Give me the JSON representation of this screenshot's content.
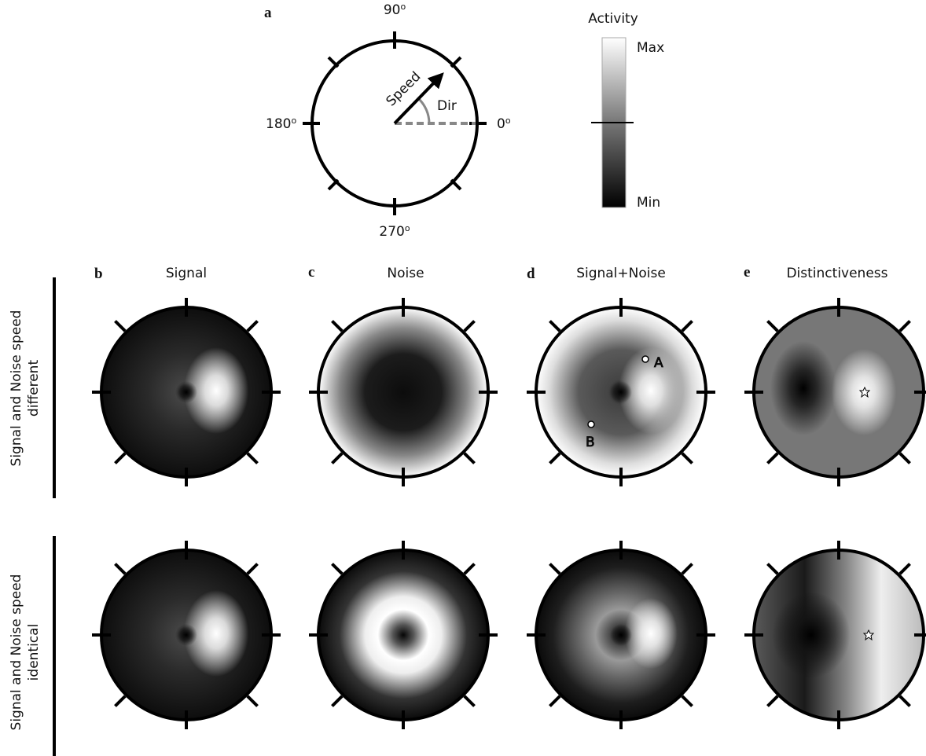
{
  "panel_a": {
    "label": "a",
    "angles": [
      {
        "num": "90",
        "sup": "o"
      },
      {
        "num": "180",
        "sup": "o"
      },
      {
        "num": "0",
        "sup": "o"
      },
      {
        "num": "270",
        "sup": "o"
      }
    ],
    "speed": "Speed",
    "dir": "Dir"
  },
  "colorbar": {
    "title": "Activity",
    "max": "Max",
    "min": "Min"
  },
  "columns": [
    {
      "label": "b",
      "title": "Signal"
    },
    {
      "label": "c",
      "title": "Noise"
    },
    {
      "label": "d",
      "title": "Signal+Noise"
    },
    {
      "label": "e",
      "title": "Distinctiveness"
    }
  ],
  "rows": [
    {
      "lines": [
        "Signal and Noise speed",
        "different"
      ]
    },
    {
      "lines": [
        "Signal and Noise speed",
        "identical"
      ]
    }
  ],
  "points": [
    "A",
    "B"
  ]
}
